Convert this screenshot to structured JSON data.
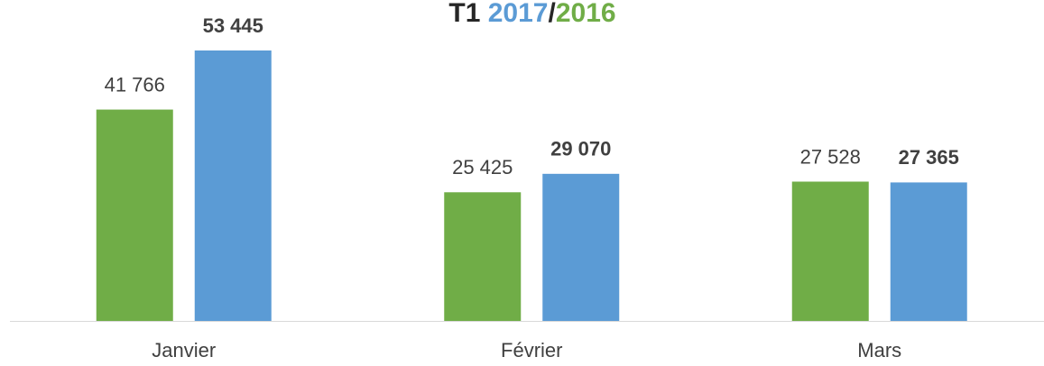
{
  "chart_data": {
    "type": "bar",
    "title": "T1",
    "legend_separator": "/",
    "categories": [
      "Janvier",
      "Février",
      "Mars"
    ],
    "series": [
      {
        "name": "2016",
        "color": "#70ad47",
        "values": [
          41766,
          25425,
          27528
        ],
        "value_labels": [
          "41 766",
          "25 425",
          "27 528"
        ],
        "bold": false
      },
      {
        "name": "2017",
        "color": "#5b9bd5",
        "values": [
          53445,
          29070,
          27365
        ],
        "value_labels": [
          "53 445",
          "29 070",
          "27 365"
        ],
        "bold": true
      }
    ],
    "legend_order": [
      1,
      0
    ]
  }
}
